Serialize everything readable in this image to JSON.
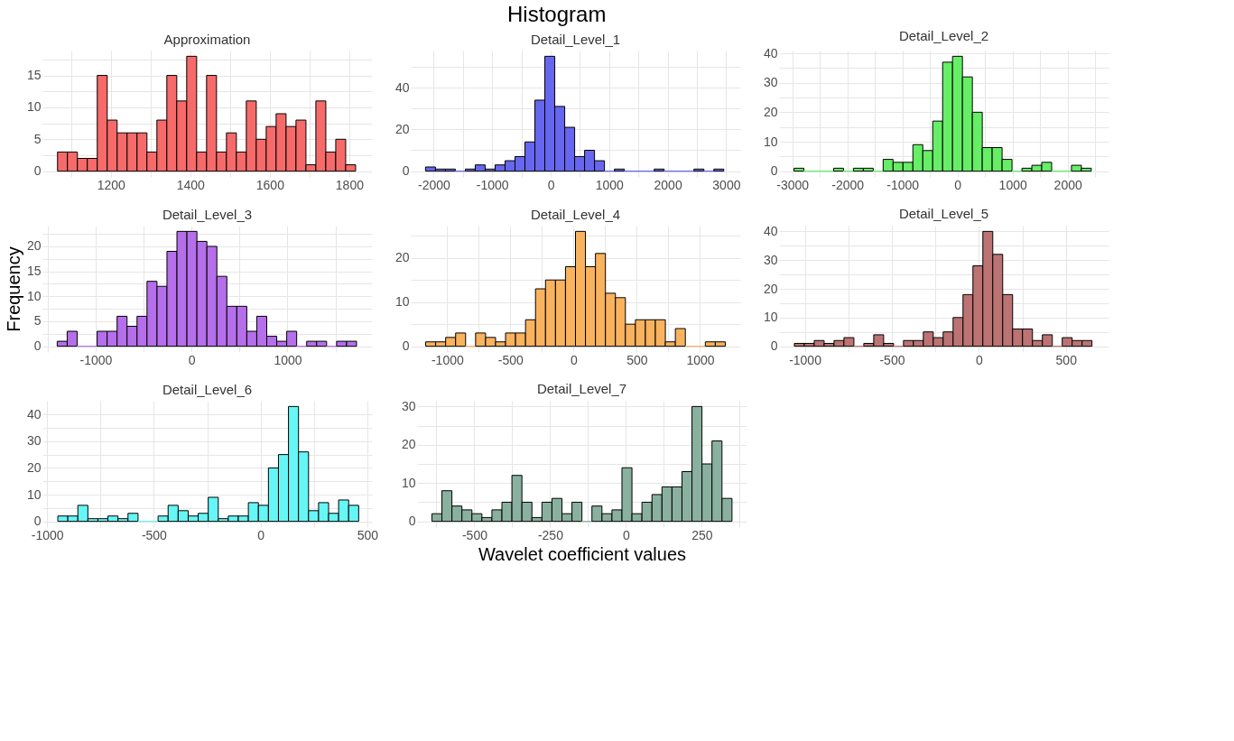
{
  "chart_data": [
    {
      "type": "histogram",
      "title": "Approximation",
      "annotations": [
        "Histogram"
      ],
      "color": "#f76a6a",
      "grid": true,
      "bins": [
        1066,
        1091,
        1116,
        1141,
        1166,
        1191,
        1216,
        1241,
        1266,
        1291,
        1316,
        1341,
        1366,
        1391,
        1416,
        1441,
        1466,
        1491,
        1516,
        1541,
        1566,
        1591,
        1616,
        1641,
        1666,
        1691,
        1716,
        1741,
        1766,
        1791,
        1816
      ],
      "values": [
        3,
        3,
        2,
        2,
        15,
        8,
        6,
        6,
        6,
        3,
        8,
        15,
        11,
        18,
        3,
        15,
        3,
        6,
        3,
        11,
        5,
        7,
        9,
        7,
        8,
        1,
        11,
        3,
        5,
        1
      ],
      "xlim": [
        1028,
        1857
      ],
      "xticks": [
        {
          "value": 1100,
          "label": null
        },
        1200,
        {
          "value": 1300,
          "label": null
        },
        1400,
        {
          "value": 1500,
          "label": null
        },
        1600,
        {
          "value": 1700,
          "label": null
        },
        1800
      ],
      "ylim": [
        -0.9,
        18.9
      ],
      "yticks": [
        0,
        {
          "value": 2.5,
          "label": null
        },
        5,
        {
          "value": 7.5,
          "label": null
        },
        10,
        {
          "value": 12.5,
          "label": null
        },
        15,
        {
          "value": 17.5,
          "label": null
        }
      ]
    },
    {
      "type": "histogram",
      "title": "Detail_Level_1",
      "color": "#6666ee",
      "grid": true,
      "bins": [
        -2140,
        -1970,
        -1800,
        -1630,
        -1460,
        -1290,
        -1120,
        -950,
        -780,
        -610,
        -440,
        -270,
        -100,
        70,
        240,
        410,
        580,
        750,
        920,
        1090,
        1260,
        1430,
        1600,
        1770,
        1940,
        2110,
        2280,
        2450,
        2620,
        2790,
        2960
      ],
      "values": [
        2,
        1,
        1,
        0,
        1,
        3,
        1,
        3,
        5,
        7,
        14,
        34,
        55,
        31,
        21,
        7,
        10,
        5,
        0,
        1,
        0,
        0,
        0,
        1,
        0,
        0,
        0,
        1,
        0,
        1
      ],
      "xlim": [
        -2393,
        3241
      ],
      "xticks": [
        -2000,
        {
          "value": -1500,
          "label": null
        },
        -1000,
        {
          "value": -500,
          "label": null
        },
        0,
        {
          "value": 500,
          "label": null
        },
        1000,
        {
          "value": 1500,
          "label": null
        },
        2000,
        {
          "value": 2500,
          "label": null
        },
        3000
      ],
      "ylim": [
        -2.75,
        57.75
      ],
      "yticks": [
        0,
        {
          "value": 10,
          "label": null
        },
        20,
        {
          "value": 30,
          "label": null
        },
        40,
        {
          "value": 50,
          "label": null
        }
      ]
    },
    {
      "type": "histogram",
      "title": "Detail_Level_2",
      "color": "#66ee66",
      "grid": true,
      "bins": [
        -2970,
        -2790,
        -2610,
        -2430,
        -2250,
        -2070,
        -1890,
        -1710,
        -1530,
        -1350,
        -1170,
        -990,
        -810,
        -630,
        -450,
        -270,
        -90,
        90,
        270,
        450,
        630,
        810,
        990,
        1170,
        1350,
        1530,
        1710,
        1890,
        2070,
        2250,
        2430
      ],
      "values": [
        1,
        0,
        0,
        0,
        1,
        0,
        1,
        1,
        0,
        4,
        3,
        3,
        9,
        7,
        17,
        37,
        39,
        32,
        20,
        8,
        8,
        4,
        0,
        1,
        2,
        3,
        0,
        0,
        2,
        1
      ],
      "xlim": [
        -3241,
        2743
      ],
      "xticks": [
        -3000,
        {
          "value": -2500,
          "label": null
        },
        -2000,
        {
          "value": -1500,
          "label": null
        },
        -1000,
        {
          "value": -500,
          "label": null
        },
        0,
        {
          "value": 500,
          "label": null
        },
        1000,
        {
          "value": 1500,
          "label": null
        },
        2000,
        {
          "value": 2500,
          "label": null
        }
      ],
      "ylim": [
        -1.95,
        40.95
      ],
      "yticks": [
        0,
        {
          "value": 5,
          "label": null
        },
        10,
        {
          "value": 15,
          "label": null
        },
        20,
        {
          "value": 25,
          "label": null
        },
        30,
        {
          "value": 35,
          "label": null
        },
        40
      ]
    },
    {
      "type": "histogram",
      "title": "Detail_Level_3",
      "ylabel": "Frequency",
      "color": "#b56fea",
      "grid": true,
      "bins": [
        -1400,
        -1296,
        -1192,
        -1088,
        -984,
        -880,
        -776,
        -672,
        -568,
        -464,
        -360,
        -256,
        -152,
        -48,
        56,
        160,
        264,
        368,
        472,
        576,
        680,
        784,
        888,
        992,
        1096,
        1200,
        1304,
        1408,
        1512,
        1616,
        1720
      ],
      "values": [
        1,
        3,
        0,
        0,
        3,
        3,
        6,
        4,
        6,
        13,
        12,
        19,
        23,
        23,
        21,
        20,
        14,
        8,
        8,
        3,
        6,
        2,
        1,
        3,
        0,
        1,
        1,
        0,
        1,
        1
      ],
      "xlim": [
        -1554,
        1880
      ],
      "xticks": [
        {
          "value": -1500,
          "label": null
        },
        -1000,
        {
          "value": -500,
          "label": null
        },
        0,
        {
          "value": 500,
          "label": null
        },
        1000,
        {
          "value": 1500,
          "label": null
        }
      ],
      "ylim": [
        -1.15,
        24.15
      ],
      "yticks": [
        0,
        {
          "value": 2.5,
          "label": null
        },
        5,
        {
          "value": 7.5,
          "label": null
        },
        10,
        {
          "value": 12.5,
          "label": null
        },
        15,
        {
          "value": 17.5,
          "label": null
        },
        20,
        {
          "value": 22.5,
          "label": null
        }
      ]
    },
    {
      "type": "histogram",
      "title": "Detail_Level_4",
      "color": "#f9b25e",
      "grid": true,
      "bins": [
        -1170,
        -1091,
        -1012,
        -933,
        -854,
        -775,
        -696,
        -617,
        -538,
        -459,
        -380,
        -301,
        -222,
        -143,
        -64,
        15,
        94,
        173,
        252,
        331,
        410,
        489,
        568,
        647,
        726,
        805,
        884,
        963,
        1042,
        1121,
        1200
      ],
      "values": [
        1,
        1,
        2,
        3,
        0,
        3,
        2,
        1,
        3,
        3,
        6,
        13,
        15,
        15,
        18,
        26,
        18,
        21,
        12,
        11,
        5,
        6,
        6,
        6,
        1,
        4,
        0,
        0,
        1,
        1
      ],
      "xlim": [
        -1288,
        1318
      ],
      "xticks": [
        -1000,
        {
          "value": -750,
          "label": null
        },
        -500,
        {
          "value": -250,
          "label": null
        },
        0,
        {
          "value": 250,
          "label": null
        },
        500,
        {
          "value": 750,
          "label": null
        },
        1000
      ],
      "ylim": [
        -1.3,
        27.3
      ],
      "yticks": [
        0,
        {
          "value": 5,
          "label": null
        },
        10,
        {
          "value": 15,
          "label": null
        },
        20,
        {
          "value": 25,
          "label": null
        }
      ]
    },
    {
      "type": "histogram",
      "title": "Detail_Level_5",
      "color": "#bc7373",
      "grid": true,
      "bins": [
        -1060,
        -1003,
        -946,
        -889,
        -832,
        -775,
        -718,
        -661,
        -604,
        -547,
        -490,
        -433,
        -376,
        -319,
        -262,
        -205,
        -148,
        -91,
        -34,
        23,
        80,
        137,
        194,
        251,
        308,
        365,
        422,
        479,
        536,
        593,
        650
      ],
      "values": [
        1,
        1,
        2,
        1,
        2,
        3,
        0,
        1,
        4,
        1,
        0,
        2,
        2,
        5,
        3,
        5,
        10,
        18,
        28,
        40,
        32,
        18,
        6,
        6,
        2,
        4,
        0,
        3,
        2,
        2
      ],
      "xlim": [
        -1148,
        745
      ],
      "xticks": [
        -1000,
        {
          "value": -750,
          "label": null
        },
        -500,
        {
          "value": -250,
          "label": null
        },
        0,
        {
          "value": 250,
          "label": null
        },
        500
      ],
      "ylim": [
        -2,
        42
      ],
      "yticks": [
        0,
        {
          "value": 5,
          "label": null
        },
        10,
        {
          "value": 15,
          "label": null
        },
        20,
        {
          "value": 25,
          "label": null
        },
        30,
        {
          "value": 35,
          "label": null
        },
        40
      ]
    },
    {
      "type": "histogram",
      "title": "Detail_Level_6",
      "color": "#66f6f6",
      "grid": true,
      "bins": [
        -950,
        -903,
        -856,
        -809,
        -762,
        -715,
        -668,
        -621,
        -574,
        -527,
        -480,
        -433,
        -386,
        -339,
        -292,
        -245,
        -198,
        -151,
        -104,
        -57,
        -10,
        37,
        84,
        131,
        178,
        225,
        272,
        319,
        366,
        413,
        460
      ],
      "values": [
        2,
        2,
        6,
        1,
        1,
        2,
        1,
        3,
        0,
        0,
        2,
        6,
        4,
        2,
        3,
        9,
        1,
        2,
        2,
        7,
        6,
        20,
        25,
        43,
        26,
        4,
        7,
        3,
        8,
        6
      ],
      "xlim": [
        -1022,
        522
      ],
      "xticks": [
        -1000,
        {
          "value": -750,
          "label": null
        },
        -500,
        {
          "value": -250,
          "label": null
        },
        0,
        {
          "value": 250,
          "label": null
        },
        500
      ],
      "ylim": [
        -2.15,
        45.15
      ],
      "yticks": [
        0,
        {
          "value": 5,
          "label": null
        },
        10,
        {
          "value": 15,
          "label": null
        },
        20,
        {
          "value": 25,
          "label": null
        },
        30,
        {
          "value": 35,
          "label": null
        },
        40
      ]
    },
    {
      "type": "histogram",
      "title": "Detail_Level_7",
      "xlabel": "Wavelet coefficient values",
      "color": "#8ab0a0",
      "grid": true,
      "bins": [
        -640,
        -607,
        -574,
        -541,
        -508,
        -475,
        -442,
        -409,
        -376,
        -343,
        -310,
        -277,
        -244,
        -211,
        -178,
        -145,
        -112,
        -79,
        -46,
        -13,
        20,
        53,
        86,
        119,
        152,
        185,
        218,
        251,
        284,
        317,
        350
      ],
      "values": [
        2,
        8,
        4,
        3,
        2,
        1,
        3,
        5,
        12,
        5,
        1,
        5,
        6,
        2,
        5,
        0,
        4,
        2,
        3,
        14,
        2,
        5,
        7,
        9,
        9,
        13,
        30,
        15,
        21,
        6
      ],
      "xlim": [
        -689,
        398
      ],
      "xticks": [
        {
          "value": -625,
          "label": null
        },
        -500,
        {
          "value": -375,
          "label": null
        },
        -250,
        {
          "value": -125,
          "label": null
        },
        0,
        {
          "value": 125,
          "label": null
        },
        250,
        {
          "value": 375,
          "label": null
        }
      ],
      "ylim": [
        -1.5,
        31.5
      ],
      "yticks": [
        0,
        {
          "value": 5,
          "label": null
        },
        10,
        {
          "value": 15,
          "label": null
        },
        20,
        {
          "value": 25,
          "label": null
        },
        30
      ]
    }
  ]
}
